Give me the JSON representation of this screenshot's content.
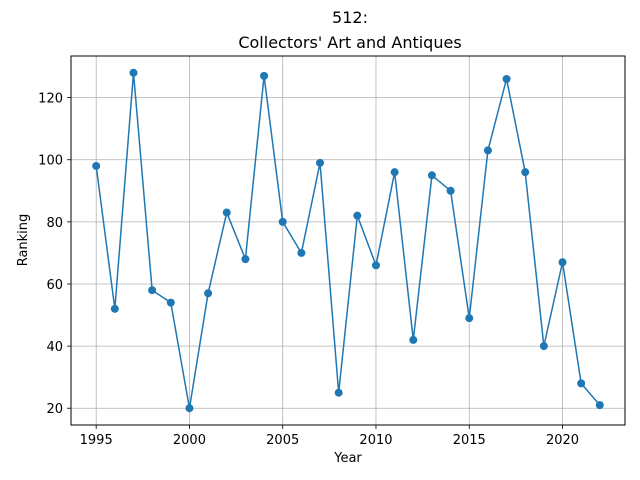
{
  "chart_data": {
    "type": "line",
    "title_line1": "512:",
    "title_line2": "Collectors' Art and Antiques",
    "xlabel": "Year",
    "ylabel": "Ranking",
    "x": [
      1995,
      1996,
      1997,
      1998,
      1999,
      2000,
      2001,
      2002,
      2003,
      2004,
      2005,
      2006,
      2007,
      2008,
      2009,
      2010,
      2011,
      2012,
      2013,
      2014,
      2015,
      2016,
      2017,
      2018,
      2019,
      2020,
      2021,
      2022
    ],
    "series": [
      {
        "values": [
          98,
          52,
          128,
          58,
          54,
          20,
          57,
          83,
          68,
          127,
          80,
          70,
          99,
          25,
          82,
          66,
          96,
          42,
          95,
          90,
          49,
          103,
          126,
          96,
          40,
          67,
          28,
          21
        ],
        "color": "#1f77b4"
      }
    ],
    "xlim": [
      1993.65,
      2023.35
    ],
    "ylim": [
      14.6,
      133.4
    ],
    "xticks": [
      1995,
      2000,
      2005,
      2010,
      2015,
      2020
    ],
    "yticks": [
      20,
      40,
      60,
      80,
      100,
      120
    ],
    "grid": true,
    "marker": "circle"
  }
}
